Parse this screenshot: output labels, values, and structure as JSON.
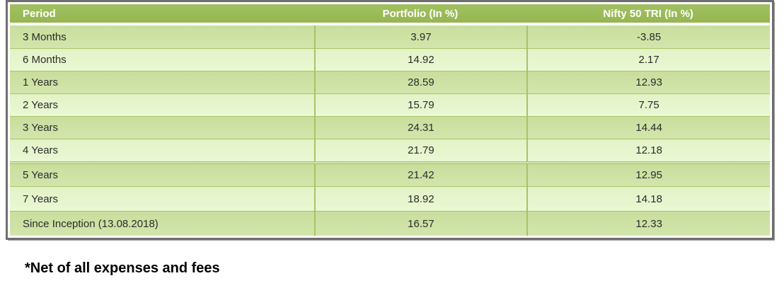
{
  "chart_data": {
    "type": "table",
    "columns": [
      "Period",
      "Portfolio (In %)",
      "Nifty 50 TRI (In %)"
    ],
    "rows": [
      {
        "period": "3 Months",
        "portfolio": "3.97",
        "nifty_50_tri": "-3.85"
      },
      {
        "period": "6 Months",
        "portfolio": "14.92",
        "nifty_50_tri": "2.17"
      },
      {
        "period": "1 Years",
        "portfolio": "28.59",
        "nifty_50_tri": "12.93"
      },
      {
        "period": "2 Years",
        "portfolio": "15.79",
        "nifty_50_tri": "7.75"
      },
      {
        "period": "3 Years",
        "portfolio": "24.31",
        "nifty_50_tri": "14.44"
      },
      {
        "period": "4 Years",
        "portfolio": "21.79",
        "nifty_50_tri": "12.18"
      },
      {
        "period": "5 Years",
        "portfolio": "21.42",
        "nifty_50_tri": "12.95"
      },
      {
        "period": "7 Years",
        "portfolio": "18.92",
        "nifty_50_tri": "14.18"
      },
      {
        "period": "Since Inception (13.08.2018)",
        "portfolio": "16.57",
        "nifty_50_tri": "12.33"
      }
    ]
  },
  "footnote": "*Net of all expenses and fees",
  "colors": {
    "header_bg": "#9BBB59",
    "row_dark_bg": "#CCE0A3",
    "row_light_bg": "#E7F5CD",
    "grid_line": "#A9C268",
    "frame_border": "#6E6E6E",
    "header_text": "#FFFFFF",
    "body_text": "#2B2B2B"
  }
}
